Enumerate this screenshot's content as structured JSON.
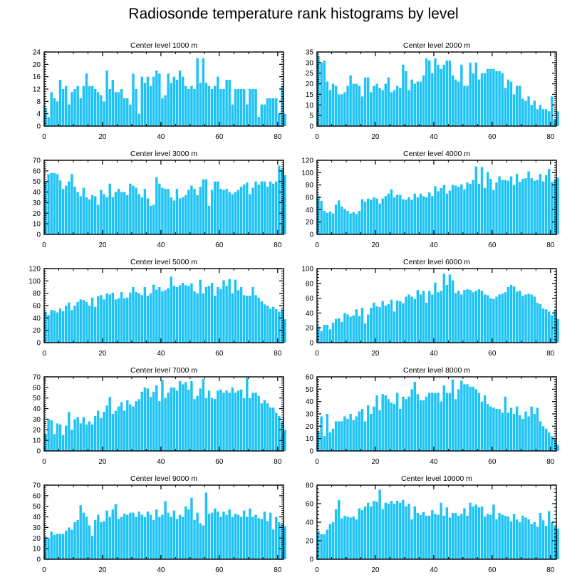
{
  "figure": {
    "title": "Radiosonde temperature rank histograms by level",
    "bar_color": "#1ec3f5",
    "frame_color": "#000000"
  },
  "chart_data": [
    {
      "type": "bar",
      "title": "Center level 1000 m",
      "xlim": [
        0,
        82
      ],
      "ylim": [
        0,
        24
      ],
      "xticks": [
        0,
        20,
        40,
        60,
        80
      ],
      "yticks": [
        0,
        4,
        8,
        12,
        16,
        20,
        24
      ],
      "values": [
        6,
        3,
        11,
        9,
        8,
        15,
        12,
        13,
        7,
        11,
        12,
        13,
        9,
        13,
        17,
        13,
        13,
        12,
        11,
        10,
        8,
        18,
        12,
        15,
        11,
        11,
        12,
        9,
        9,
        7,
        17,
        12,
        4,
        16,
        14,
        16,
        13,
        16,
        18,
        17,
        9,
        10,
        17,
        14,
        16,
        15,
        18,
        16,
        13,
        12,
        13,
        12,
        22,
        14,
        22,
        14,
        13,
        12,
        13,
        16,
        12,
        12,
        15,
        15,
        7,
        12,
        12,
        12,
        12,
        7,
        12,
        12,
        12,
        3,
        7,
        7,
        9,
        9,
        9,
        9,
        4,
        13,
        4
      ]
    },
    {
      "type": "bar",
      "title": "Center level 2000 m",
      "xlim": [
        0,
        82
      ],
      "ylim": [
        0,
        35
      ],
      "xticks": [
        0,
        20,
        40,
        60,
        80
      ],
      "yticks": [
        0,
        5,
        10,
        15,
        20,
        25,
        30,
        35
      ],
      "values": [
        33,
        30,
        31,
        21,
        17,
        20,
        19,
        15,
        15,
        16,
        19,
        24,
        20,
        20,
        19,
        14,
        23,
        23,
        16,
        19,
        20,
        18,
        17,
        20,
        23,
        16,
        17,
        19,
        18,
        29,
        26,
        17,
        22,
        20,
        21,
        21,
        24,
        32,
        31,
        25,
        32,
        29,
        27,
        29,
        31,
        31,
        24,
        22,
        21,
        29,
        19,
        19,
        30,
        25,
        30,
        22,
        25,
        25,
        27,
        27,
        27,
        26,
        26,
        25,
        18,
        22,
        21,
        15,
        19,
        19,
        13,
        12,
        14,
        10,
        12,
        8,
        10,
        8,
        8,
        7,
        14,
        3,
        7
      ]
    },
    {
      "type": "bar",
      "title": "Center level 3000 m",
      "xlim": [
        0,
        82
      ],
      "ylim": [
        0,
        70
      ],
      "xticks": [
        0,
        20,
        40,
        60,
        80
      ],
      "yticks": [
        0,
        10,
        20,
        30,
        40,
        50,
        60,
        70
      ],
      "values": [
        50,
        57,
        58,
        58,
        57,
        51,
        43,
        46,
        50,
        57,
        45,
        40,
        36,
        44,
        35,
        33,
        37,
        36,
        28,
        42,
        38,
        35,
        48,
        35,
        40,
        43,
        40,
        40,
        37,
        48,
        46,
        44,
        38,
        35,
        43,
        34,
        27,
        28,
        54,
        48,
        44,
        43,
        43,
        35,
        32,
        43,
        34,
        35,
        37,
        42,
        46,
        43,
        37,
        45,
        52,
        52,
        27,
        42,
        50,
        50,
        43,
        42,
        43,
        40,
        38,
        40,
        42,
        45,
        47,
        49,
        38,
        44,
        50,
        47,
        50,
        50,
        45,
        50,
        48,
        50,
        65,
        61,
        56
      ]
    },
    {
      "type": "bar",
      "title": "Center level 4000 m",
      "xlim": [
        0,
        82
      ],
      "ylim": [
        0,
        120
      ],
      "xticks": [
        0,
        20,
        40,
        60,
        80
      ],
      "yticks": [
        0,
        20,
        40,
        60,
        80,
        100,
        120
      ],
      "values": [
        62,
        54,
        38,
        35,
        37,
        34,
        48,
        55,
        45,
        41,
        38,
        34,
        36,
        33,
        38,
        57,
        53,
        58,
        56,
        60,
        58,
        50,
        58,
        62,
        66,
        73,
        60,
        64,
        64,
        57,
        56,
        60,
        56,
        66,
        60,
        66,
        62,
        60,
        68,
        62,
        78,
        70,
        75,
        80,
        66,
        71,
        80,
        79,
        77,
        81,
        73,
        84,
        82,
        88,
        110,
        82,
        109,
        75,
        101,
        90,
        72,
        84,
        94,
        88,
        88,
        87,
        94,
        80,
        98,
        85,
        90,
        91,
        102,
        91,
        87,
        88,
        98,
        86,
        96,
        106,
        85,
        89,
        92
      ]
    },
    {
      "type": "bar",
      "title": "Center level 5000 m",
      "xlim": [
        0,
        82
      ],
      "ylim": [
        0,
        120
      ],
      "xticks": [
        0,
        20,
        40,
        60,
        80
      ],
      "yticks": [
        0,
        20,
        40,
        60,
        80,
        100,
        120
      ],
      "values": [
        50,
        45,
        53,
        52,
        49,
        55,
        51,
        60,
        65,
        53,
        60,
        66,
        70,
        69,
        66,
        60,
        73,
        58,
        75,
        77,
        70,
        80,
        78,
        81,
        70,
        72,
        82,
        72,
        73,
        81,
        90,
        82,
        80,
        77,
        90,
        76,
        80,
        94,
        86,
        90,
        83,
        85,
        88,
        107,
        92,
        90,
        93,
        97,
        93,
        92,
        96,
        83,
        80,
        102,
        80,
        90,
        92,
        97,
        76,
        90,
        87,
        101,
        92,
        103,
        80,
        102,
        85,
        90,
        77,
        76,
        76,
        90,
        77,
        73,
        67,
        62,
        60,
        55,
        58,
        54,
        50,
        54,
        38
      ]
    },
    {
      "type": "bar",
      "title": "Center level 6000 m",
      "xlim": [
        0,
        82
      ],
      "ylim": [
        0,
        100
      ],
      "xticks": [
        0,
        20,
        40,
        60,
        80
      ],
      "yticks": [
        0,
        20,
        40,
        60,
        80,
        100
      ],
      "values": [
        22,
        16,
        24,
        24,
        18,
        27,
        32,
        33,
        28,
        40,
        38,
        35,
        37,
        45,
        36,
        47,
        26,
        38,
        47,
        54,
        49,
        48,
        56,
        50,
        52,
        58,
        42,
        57,
        56,
        53,
        62,
        65,
        62,
        59,
        71,
        65,
        70,
        54,
        70,
        65,
        81,
        68,
        70,
        93,
        78,
        92,
        84,
        67,
        70,
        65,
        71,
        72,
        71,
        68,
        70,
        72,
        70,
        65,
        64,
        60,
        59,
        62,
        65,
        66,
        68,
        75,
        78,
        76,
        69,
        70,
        63,
        65,
        66,
        65,
        62,
        54,
        52,
        46,
        45,
        42,
        37,
        44,
        32
      ]
    },
    {
      "type": "bar",
      "title": "Center level 7000 m",
      "xlim": [
        0,
        82
      ],
      "ylim": [
        0,
        70
      ],
      "xticks": [
        0,
        20,
        40,
        60,
        80
      ],
      "yticks": [
        0,
        10,
        20,
        30,
        40,
        50,
        60,
        70
      ],
      "values": [
        16,
        30,
        29,
        16,
        26,
        25,
        15,
        24,
        37,
        20,
        30,
        32,
        26,
        32,
        25,
        28,
        25,
        33,
        38,
        31,
        37,
        43,
        51,
        35,
        38,
        42,
        46,
        38,
        48,
        44,
        42,
        47,
        49,
        56,
        60,
        59,
        51,
        56,
        62,
        47,
        67,
        50,
        55,
        60,
        60,
        57,
        66,
        63,
        65,
        58,
        66,
        49,
        52,
        59,
        68,
        50,
        57,
        50,
        49,
        57,
        58,
        55,
        57,
        55,
        60,
        55,
        57,
        58,
        50,
        69,
        50,
        55,
        55,
        52,
        45,
        48,
        45,
        41,
        41,
        36,
        33,
        27,
        20
      ]
    },
    {
      "type": "bar",
      "title": "Center level 8000 m",
      "xlim": [
        0,
        82
      ],
      "ylim": [
        0,
        60
      ],
      "xticks": [
        0,
        20,
        40,
        60,
        80
      ],
      "yticks": [
        0,
        10,
        20,
        30,
        40,
        50,
        60
      ],
      "values": [
        16,
        28,
        12,
        30,
        15,
        18,
        24,
        24,
        24,
        28,
        26,
        30,
        25,
        28,
        32,
        34,
        24,
        37,
        30,
        36,
        45,
        33,
        46,
        45,
        42,
        39,
        38,
        47,
        34,
        44,
        42,
        44,
        50,
        56,
        46,
        41,
        41,
        44,
        47,
        47,
        47,
        47,
        40,
        53,
        47,
        47,
        58,
        42,
        50,
        57,
        54,
        54,
        52,
        52,
        50,
        47,
        40,
        45,
        38,
        36,
        35,
        34,
        34,
        31,
        44,
        31,
        35,
        30,
        36,
        29,
        26,
        32,
        28,
        36,
        30,
        35,
        24,
        20,
        18,
        15,
        12,
        10,
        5
      ]
    },
    {
      "type": "bar",
      "title": "Center level 9000 m",
      "xlim": [
        0,
        82
      ],
      "ylim": [
        0,
        70
      ],
      "xticks": [
        0,
        20,
        40,
        60,
        80
      ],
      "yticks": [
        0,
        10,
        20,
        30,
        40,
        50,
        60,
        70
      ],
      "values": [
        21,
        20,
        26,
        23,
        24,
        24,
        24,
        27,
        30,
        28,
        35,
        37,
        51,
        44,
        40,
        32,
        22,
        37,
        42,
        35,
        36,
        46,
        40,
        47,
        52,
        38,
        40,
        43,
        42,
        44,
        44,
        40,
        45,
        42,
        40,
        45,
        42,
        37,
        47,
        40,
        42,
        55,
        44,
        40,
        46,
        38,
        42,
        40,
        50,
        47,
        58,
        37,
        44,
        34,
        32,
        63,
        43,
        44,
        48,
        45,
        40,
        45,
        42,
        47,
        40,
        43,
        42,
        40,
        46,
        40,
        48,
        40,
        42,
        39,
        38,
        45,
        36,
        44,
        28,
        40,
        35,
        33,
        31
      ]
    },
    {
      "type": "bar",
      "title": "Center level 10000 m",
      "xlim": [
        0,
        82
      ],
      "ylim": [
        0,
        80
      ],
      "xticks": [
        0,
        20,
        40,
        60,
        80
      ],
      "yticks": [
        0,
        20,
        40,
        60,
        80
      ],
      "values": [
        30,
        27,
        27,
        32,
        38,
        40,
        54,
        64,
        44,
        47,
        46,
        45,
        46,
        43,
        55,
        53,
        57,
        61,
        57,
        63,
        62,
        75,
        54,
        61,
        60,
        63,
        60,
        63,
        61,
        64,
        57,
        60,
        43,
        57,
        50,
        48,
        51,
        47,
        47,
        53,
        49,
        48,
        61,
        47,
        56,
        45,
        50,
        50,
        47,
        49,
        55,
        47,
        61,
        57,
        59,
        56,
        57,
        46,
        49,
        48,
        59,
        43,
        50,
        48,
        47,
        46,
        41,
        49,
        43,
        40,
        47,
        45,
        43,
        38,
        40,
        35,
        50,
        42,
        36,
        52,
        40,
        35,
        33
      ]
    }
  ]
}
